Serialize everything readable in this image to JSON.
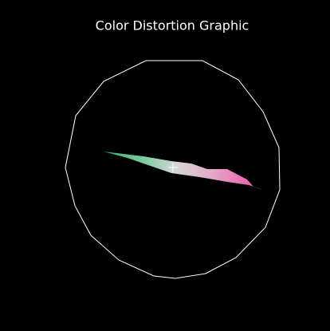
{
  "title": "Color Distortion Graphic"
}
